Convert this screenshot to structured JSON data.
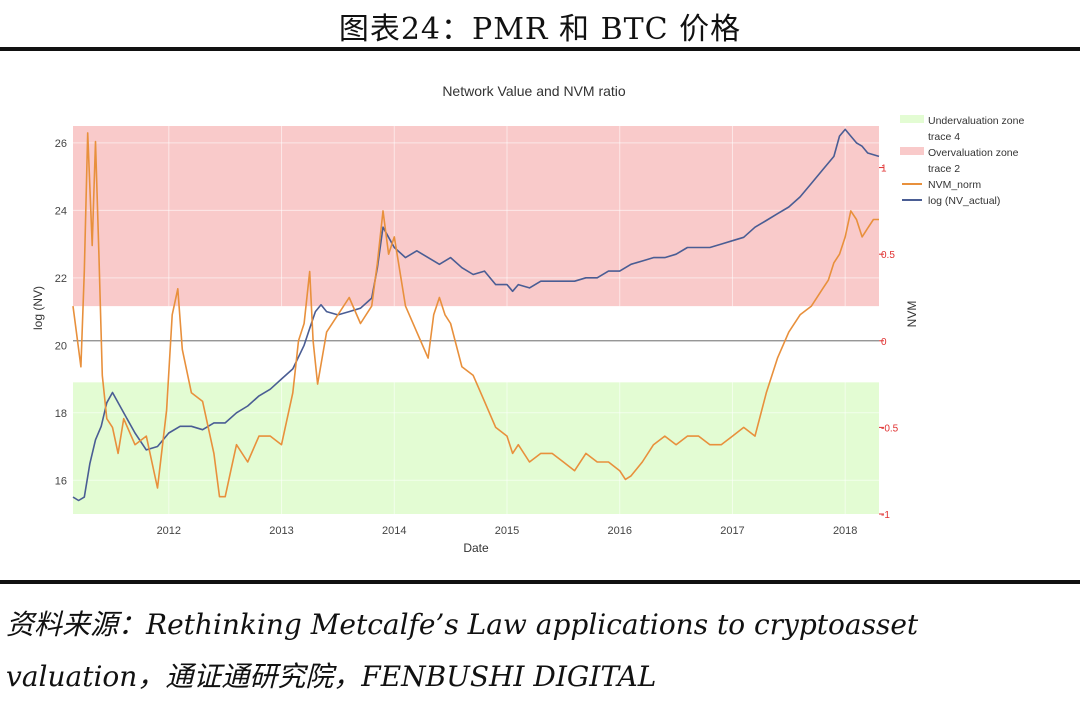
{
  "figure_heading": "图表24：PMR 和 BTC 价格",
  "source_line_1": "资料来源：Rethinking Metcalfe’s Law applications to cryptoasset",
  "source_line_2": "valuation，通证通研究院，FENBUSHI DIGITAL",
  "colors": {
    "nv_line": "#4a5d94",
    "nvm_line": "#e8903c",
    "overvaluation_zone": "#f9caca",
    "undervaluation_zone": "#e3fcd3",
    "zero_line": "#888888",
    "right_axis_text": "#e03030"
  },
  "chart_data": {
    "type": "line",
    "title": "Network Value and NVM ratio",
    "xlabel": "Date",
    "ylabel": "log (NV)",
    "y2label": "NVM",
    "x_range": [
      2011.15,
      2018.3
    ],
    "x_ticks": [
      2012,
      2013,
      2014,
      2015,
      2016,
      2017,
      2018
    ],
    "x_tick_labels": [
      "2012",
      "2013",
      "2014",
      "2015",
      "2016",
      "2017",
      "2018"
    ],
    "ylim": [
      15,
      26.5
    ],
    "y_ticks": [
      16,
      18,
      20,
      22,
      24,
      26
    ],
    "y_tick_labels": [
      "16",
      "18",
      "20",
      "22",
      "24",
      "26"
    ],
    "y2lim": [
      -1.0,
      1.24
    ],
    "y2_ticks": [
      -1,
      -0.5,
      0,
      0.5,
      1
    ],
    "y2_tick_labels": [
      "-1",
      "-0.5",
      "0",
      "0.5",
      "1"
    ],
    "grid": true,
    "legend_position": "right",
    "zones": [
      {
        "name": "Undervaluation zone",
        "axis": "y2",
        "from": -1.0,
        "to": -0.24
      },
      {
        "name": "Overvaluation zone",
        "axis": "y2",
        "from": 0.2,
        "to": 1.24
      }
    ],
    "legend": [
      {
        "label": "Undervaluation zone",
        "kind": "zone",
        "color": "#e3fcd3"
      },
      {
        "label": "trace 4",
        "kind": "none",
        "color": ""
      },
      {
        "label": "Overvaluation zone",
        "kind": "zone",
        "color": "#f9caca"
      },
      {
        "label": "trace 2",
        "kind": "none",
        "color": ""
      },
      {
        "label": "NVM_norm",
        "kind": "line",
        "color": "#e8903c"
      },
      {
        "label": "log (NV_actual)",
        "kind": "line",
        "color": "#4a5d94"
      }
    ],
    "series": [
      {
        "name": "log (NV_actual)",
        "axis": "y",
        "color": "#4a5d94",
        "x": [
          2011.15,
          2011.2,
          2011.25,
          2011.3,
          2011.35,
          2011.4,
          2011.45,
          2011.5,
          2011.6,
          2011.7,
          2011.8,
          2011.9,
          2012.0,
          2012.1,
          2012.2,
          2012.3,
          2012.4,
          2012.5,
          2012.6,
          2012.7,
          2012.8,
          2012.9,
          2013.0,
          2013.1,
          2013.2,
          2013.25,
          2013.3,
          2013.35,
          2013.4,
          2013.5,
          2013.6,
          2013.7,
          2013.8,
          2013.85,
          2013.9,
          2013.95,
          2014.0,
          2014.1,
          2014.2,
          2014.3,
          2014.4,
          2014.5,
          2014.6,
          2014.7,
          2014.8,
          2014.9,
          2015.0,
          2015.05,
          2015.1,
          2015.2,
          2015.3,
          2015.4,
          2015.5,
          2015.6,
          2015.7,
          2015.8,
          2015.9,
          2016.0,
          2016.1,
          2016.2,
          2016.3,
          2016.4,
          2016.5,
          2016.6,
          2016.7,
          2016.8,
          2016.9,
          2017.0,
          2017.1,
          2017.2,
          2017.3,
          2017.4,
          2017.5,
          2017.6,
          2017.7,
          2017.8,
          2017.9,
          2017.95,
          2018.0,
          2018.05,
          2018.1,
          2018.15,
          2018.2,
          2018.3
        ],
        "values": [
          15.5,
          15.4,
          15.5,
          16.5,
          17.2,
          17.6,
          18.3,
          18.6,
          18.0,
          17.4,
          16.9,
          17.0,
          17.4,
          17.6,
          17.6,
          17.5,
          17.7,
          17.7,
          18.0,
          18.2,
          18.5,
          18.7,
          19.0,
          19.3,
          20.0,
          20.5,
          21.0,
          21.2,
          21.0,
          20.9,
          21.0,
          21.1,
          21.4,
          22.3,
          23.5,
          23.2,
          22.9,
          22.6,
          22.8,
          22.6,
          22.4,
          22.6,
          22.3,
          22.1,
          22.2,
          21.8,
          21.8,
          21.6,
          21.8,
          21.7,
          21.9,
          21.9,
          21.9,
          21.9,
          22.0,
          22.0,
          22.2,
          22.2,
          22.4,
          22.5,
          22.6,
          22.6,
          22.7,
          22.9,
          22.9,
          22.9,
          23.0,
          23.1,
          23.2,
          23.5,
          23.7,
          23.9,
          24.1,
          24.4,
          24.8,
          25.2,
          25.6,
          26.2,
          26.4,
          26.2,
          26.0,
          25.9,
          25.7,
          25.6
        ]
      },
      {
        "name": "NVM_norm",
        "axis": "y2",
        "color": "#e8903c",
        "x": [
          2011.15,
          2011.18,
          2011.22,
          2011.25,
          2011.28,
          2011.32,
          2011.35,
          2011.38,
          2011.41,
          2011.45,
          2011.5,
          2011.55,
          2011.6,
          2011.7,
          2011.8,
          2011.9,
          2011.98,
          2012.03,
          2012.08,
          2012.12,
          2012.2,
          2012.3,
          2012.4,
          2012.45,
          2012.5,
          2012.55,
          2012.6,
          2012.7,
          2012.8,
          2012.9,
          2013.0,
          2013.1,
          2013.15,
          2013.2,
          2013.25,
          2013.28,
          2013.32,
          2013.4,
          2013.5,
          2013.6,
          2013.7,
          2013.8,
          2013.85,
          2013.9,
          2013.95,
          2014.0,
          2014.05,
          2014.1,
          2014.2,
          2014.3,
          2014.35,
          2014.4,
          2014.45,
          2014.5,
          2014.6,
          2014.7,
          2014.8,
          2014.9,
          2015.0,
          2015.05,
          2015.1,
          2015.2,
          2015.3,
          2015.4,
          2015.5,
          2015.6,
          2015.7,
          2015.8,
          2015.9,
          2016.0,
          2016.05,
          2016.1,
          2016.2,
          2016.3,
          2016.4,
          2016.5,
          2016.6,
          2016.7,
          2016.8,
          2016.9,
          2017.0,
          2017.1,
          2017.2,
          2017.3,
          2017.4,
          2017.5,
          2017.6,
          2017.7,
          2017.8,
          2017.85,
          2017.9,
          2017.95,
          2018.0,
          2018.05,
          2018.1,
          2018.15,
          2018.2,
          2018.25,
          2018.3
        ],
        "values": [
          0.2,
          0.05,
          -0.15,
          0.4,
          1.2,
          0.55,
          1.15,
          0.5,
          -0.2,
          -0.45,
          -0.5,
          -0.65,
          -0.45,
          -0.6,
          -0.55,
          -0.85,
          -0.4,
          0.15,
          0.3,
          -0.05,
          -0.3,
          -0.35,
          -0.65,
          -0.9,
          -0.9,
          -0.75,
          -0.6,
          -0.7,
          -0.55,
          -0.55,
          -0.6,
          -0.3,
          0.0,
          0.1,
          0.4,
          0.0,
          -0.25,
          0.05,
          0.15,
          0.25,
          0.1,
          0.2,
          0.45,
          0.75,
          0.5,
          0.6,
          0.4,
          0.2,
          0.05,
          -0.1,
          0.15,
          0.25,
          0.15,
          0.1,
          -0.15,
          -0.2,
          -0.35,
          -0.5,
          -0.55,
          -0.65,
          -0.6,
          -0.7,
          -0.65,
          -0.65,
          -0.7,
          -0.75,
          -0.65,
          -0.7,
          -0.7,
          -0.75,
          -0.8,
          -0.78,
          -0.7,
          -0.6,
          -0.55,
          -0.6,
          -0.55,
          -0.55,
          -0.6,
          -0.6,
          -0.55,
          -0.5,
          -0.55,
          -0.3,
          -0.1,
          0.05,
          0.15,
          0.2,
          0.3,
          0.35,
          0.45,
          0.5,
          0.6,
          0.75,
          0.7,
          0.6,
          0.65,
          0.7,
          0.7
        ]
      }
    ]
  }
}
